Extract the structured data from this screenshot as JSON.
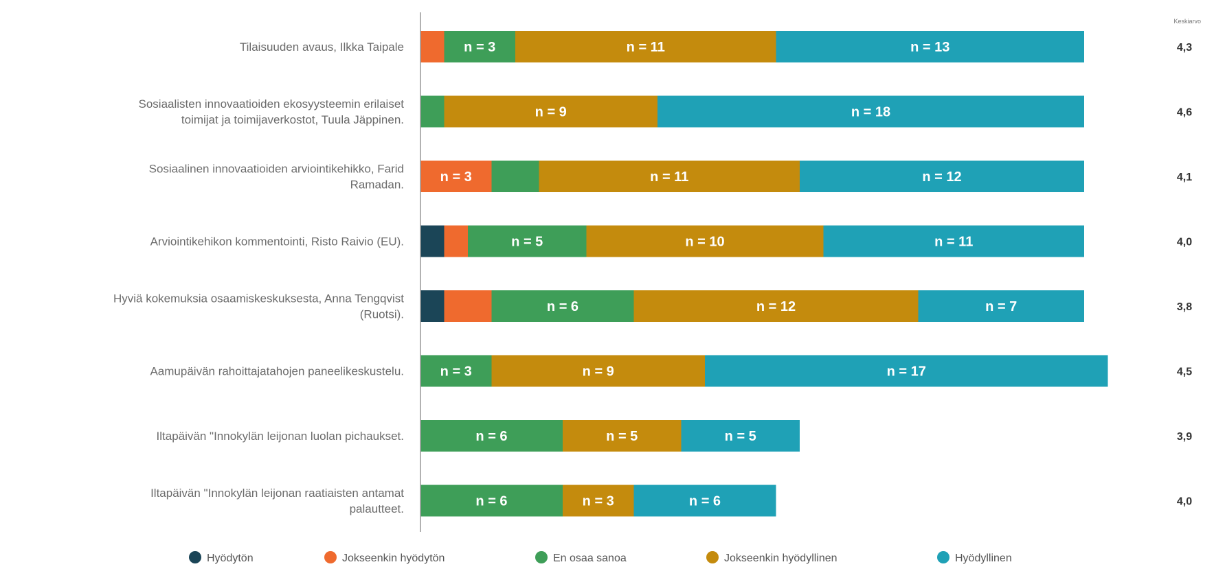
{
  "chart_data": {
    "type": "bar",
    "orientation": "horizontal",
    "stacked": true,
    "mean_header": "Keskiarvo",
    "categories": [
      [
        "Tilaisuuden avaus, Ilkka Taipale"
      ],
      [
        "Sosiaalisten innovaatioiden ekosyysteemin erilaiset",
        "toimijat ja toimijaverkostot, Tuula Jäppinen."
      ],
      [
        "Sosiaalinen innovaatioiden arviointikehikko, Farid",
        "Ramadan."
      ],
      [
        "Arviointikehikon kommentointi, Risto Raivio (EU)."
      ],
      [
        "Hyviä kokemuksia osaamiskeskuksesta, Anna Tengqvist",
        "(Ruotsi)."
      ],
      [
        "Aamupäivän rahoittajatahojen paneelikeskustelu."
      ],
      [
        "Iltapäivän \"Innokylän leijonan luolan pichaukset."
      ],
      [
        "Iltapäivän \"Innokylän leijonan raatiaisten antamat",
        "palautteet."
      ]
    ],
    "series": [
      {
        "name": "Hyödytön",
        "color": "#1b4557",
        "values": [
          0,
          0,
          0,
          1,
          1,
          0,
          0,
          0
        ]
      },
      {
        "name": "Jokseenkin hyödytön",
        "color": "#ef6a2e",
        "values": [
          1,
          0,
          3,
          1,
          2,
          0,
          0,
          0
        ]
      },
      {
        "name": "En osaa sanoa",
        "color": "#3e9e58",
        "values": [
          3,
          1,
          2,
          5,
          6,
          3,
          6,
          6
        ]
      },
      {
        "name": "Jokseenkin hyödyllinen",
        "color": "#c48b0d",
        "values": [
          11,
          9,
          11,
          10,
          12,
          9,
          5,
          3
        ]
      },
      {
        "name": "Hyödyllinen",
        "color": "#1fa1b6",
        "values": [
          13,
          18,
          12,
          11,
          7,
          17,
          5,
          6
        ]
      }
    ],
    "data_labels": [
      [
        null,
        null,
        "n = 3",
        "n = 11",
        "n = 13"
      ],
      [
        null,
        null,
        null,
        "n = 9",
        "n = 18"
      ],
      [
        null,
        "n = 3",
        null,
        "n = 11",
        "n = 12"
      ],
      [
        null,
        null,
        "n = 5",
        "n = 10",
        "n = 11"
      ],
      [
        null,
        null,
        "n = 6",
        "n = 12",
        "n = 7"
      ],
      [
        null,
        null,
        "n = 3",
        "n = 9",
        "n = 17"
      ],
      [
        null,
        null,
        "n = 6",
        "n = 5",
        "n = 5"
      ],
      [
        null,
        null,
        "n = 6",
        "n = 3",
        "n = 6"
      ]
    ],
    "means": [
      "4,3",
      "4,6",
      "4,1",
      "4,0",
      "3,8",
      "4,5",
      "3,9",
      "4,0"
    ],
    "xlim": [
      0,
      29
    ],
    "legend_position": "bottom",
    "grid": false
  }
}
